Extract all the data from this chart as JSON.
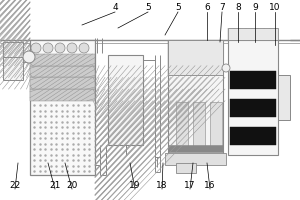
{
  "bg_color": "#ffffff",
  "lc": "#888888",
  "bc": "#000000",
  "figsize": [
    3.0,
    2.0
  ],
  "dpi": 100,
  "label_data": [
    [
      "4",
      115,
      8,
      82,
      25
    ],
    [
      "5",
      148,
      8,
      118,
      28
    ],
    [
      "5",
      178,
      8,
      165,
      35
    ],
    [
      "6",
      207,
      8,
      207,
      40
    ],
    [
      "7",
      222,
      8,
      220,
      42
    ],
    [
      "8",
      238,
      8,
      238,
      42
    ],
    [
      "9",
      255,
      8,
      255,
      42
    ],
    [
      "10",
      275,
      8,
      275,
      45
    ],
    [
      "22",
      15,
      185,
      18,
      163
    ],
    [
      "21",
      55,
      185,
      48,
      163
    ],
    [
      "20",
      72,
      185,
      65,
      163
    ],
    [
      "19",
      135,
      185,
      130,
      163
    ],
    [
      "18",
      162,
      185,
      163,
      163
    ],
    [
      "17",
      190,
      185,
      193,
      163
    ],
    [
      "16",
      210,
      185,
      207,
      163
    ]
  ]
}
